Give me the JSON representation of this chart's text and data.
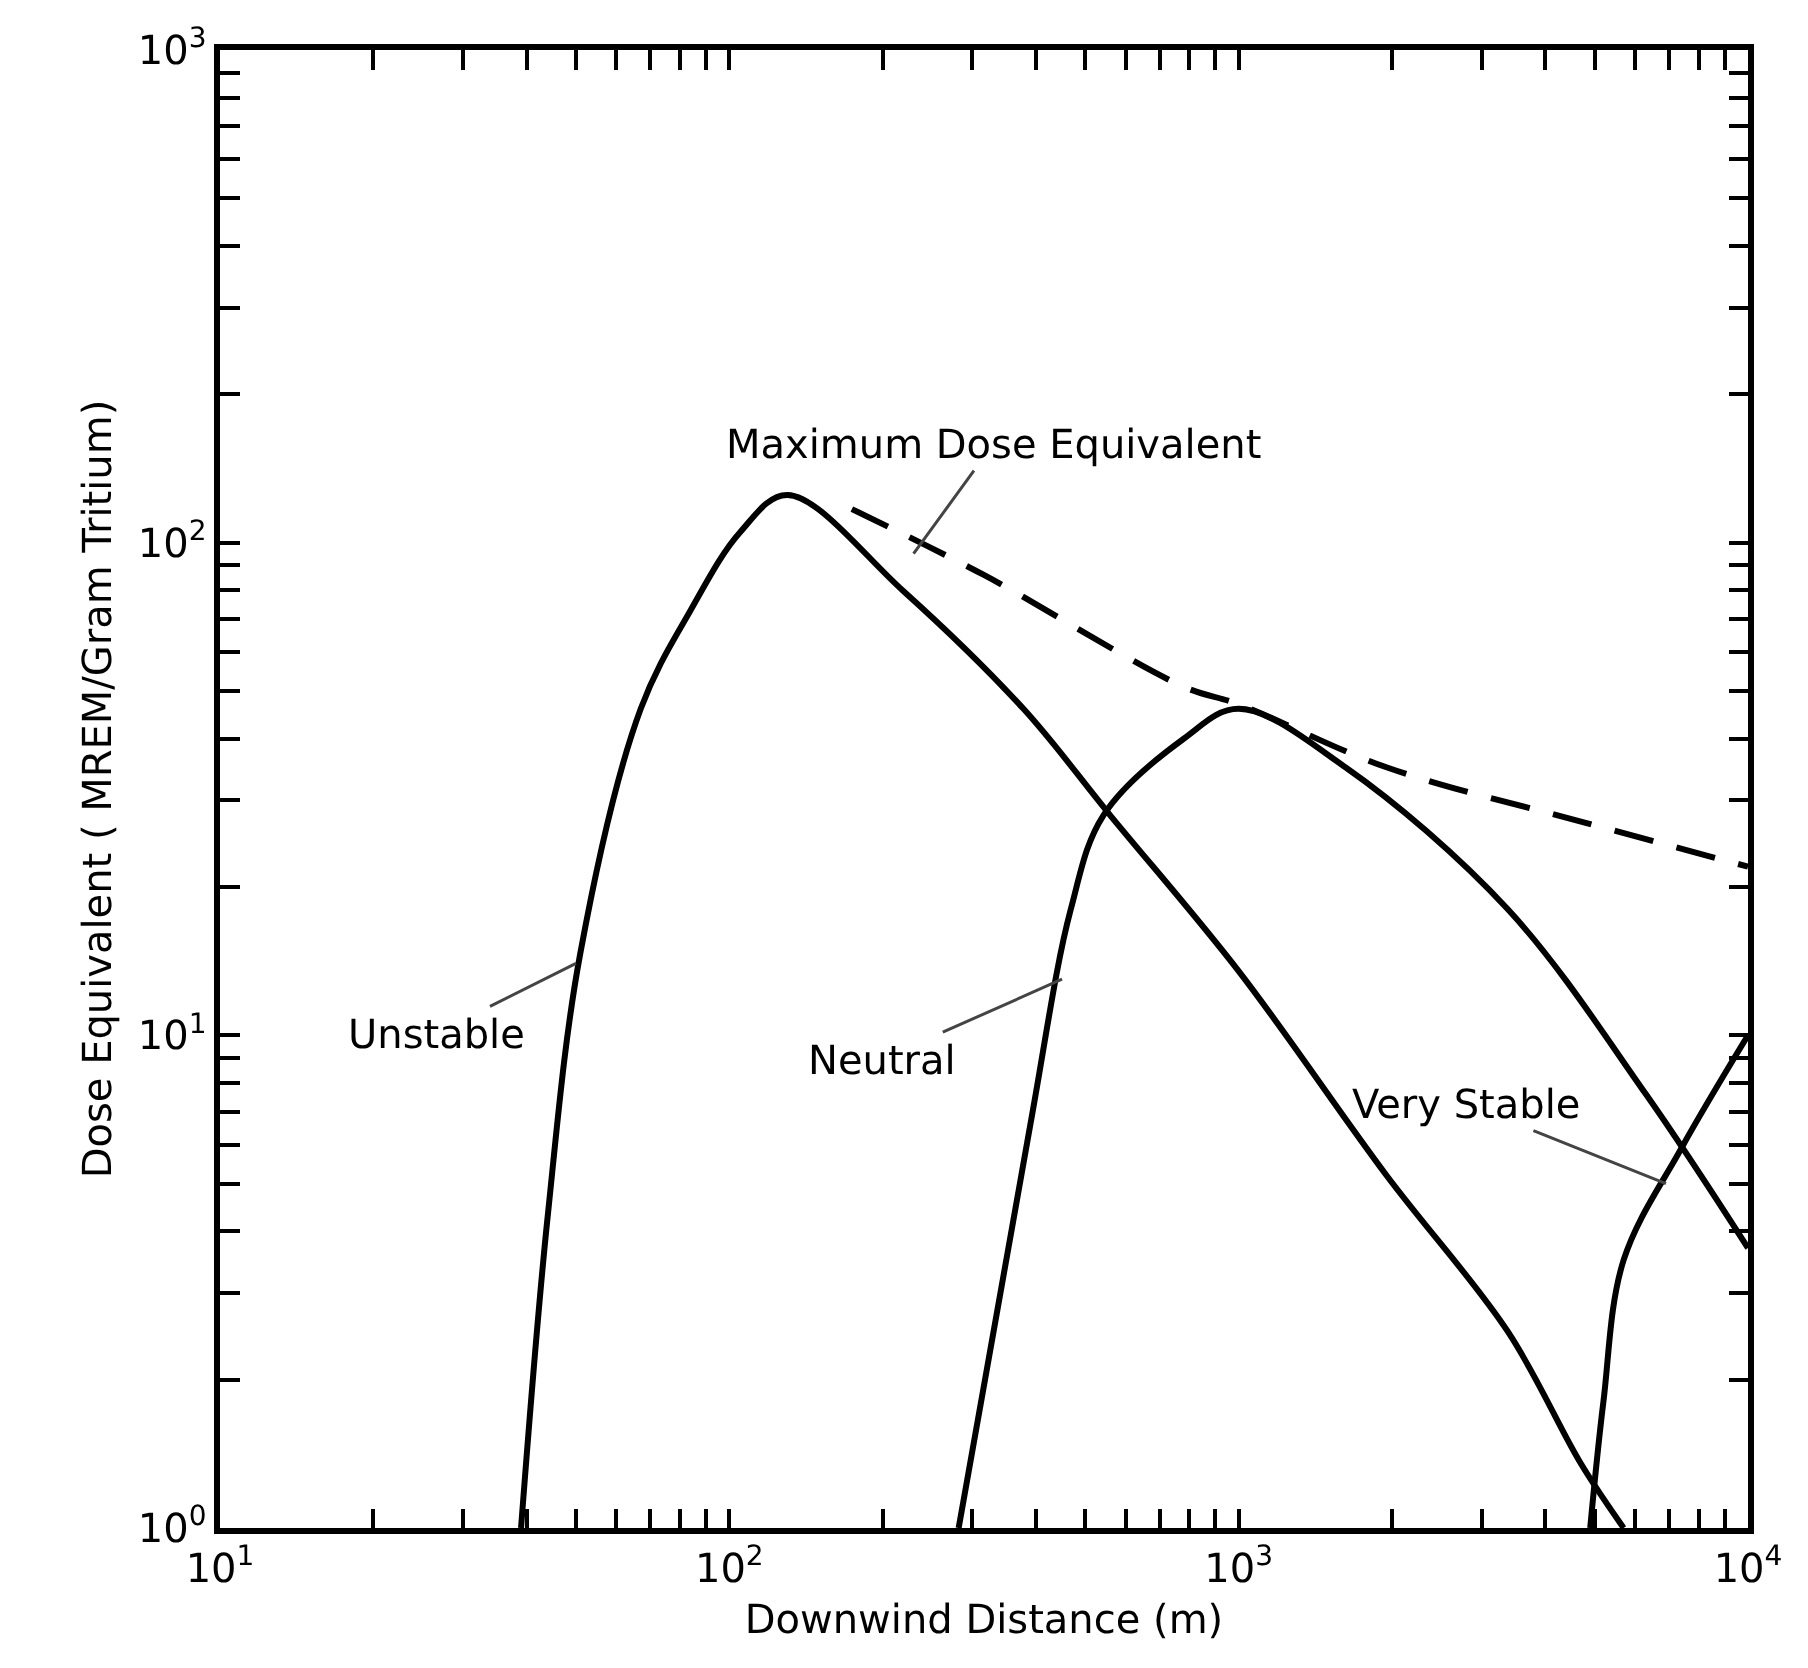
{
  "chart_data": {
    "type": "line",
    "xlabel": "Downwind Distance (m)",
    "ylabel": "Dose Equivalent ( MREM/Gram Tritium)",
    "log": "xy",
    "grid": false,
    "marker": "none",
    "xlim": [
      10,
      10000
    ],
    "ylim": [
      1,
      1000
    ],
    "xticks": [
      {
        "value": 10,
        "label": "10$^{1}$"
      },
      {
        "value": 20,
        "label": null
      },
      {
        "value": 30,
        "label": null
      },
      {
        "value": 40,
        "label": null
      },
      {
        "value": 50,
        "label": null
      },
      {
        "value": 60,
        "label": null
      },
      {
        "value": 70,
        "label": null
      },
      {
        "value": 80,
        "label": null
      },
      {
        "value": 90,
        "label": null
      },
      {
        "value": 100,
        "label": "10$^{2}$"
      },
      {
        "value": 200,
        "label": null
      },
      {
        "value": 300,
        "label": null
      },
      {
        "value": 400,
        "label": null
      },
      {
        "value": 500,
        "label": null
      },
      {
        "value": 600,
        "label": null
      },
      {
        "value": 700,
        "label": null
      },
      {
        "value": 800,
        "label": null
      },
      {
        "value": 900,
        "label": null
      },
      {
        "value": 1000,
        "label": "10$^{3}$"
      },
      {
        "value": 2000,
        "label": null
      },
      {
        "value": 3000,
        "label": null
      },
      {
        "value": 4000,
        "label": null
      },
      {
        "value": 5000,
        "label": null
      },
      {
        "value": 6000,
        "label": null
      },
      {
        "value": 7000,
        "label": null
      },
      {
        "value": 8000,
        "label": null
      },
      {
        "value": 9000,
        "label": null
      },
      {
        "value": 10000,
        "label": "10$^{4}$"
      }
    ],
    "yticks": [
      {
        "value": 1,
        "label": "10$^{0}$"
      },
      {
        "value": 2,
        "label": null
      },
      {
        "value": 3,
        "label": null
      },
      {
        "value": 4,
        "label": null
      },
      {
        "value": 5,
        "label": null
      },
      {
        "value": 6,
        "label": null
      },
      {
        "value": 7,
        "label": null
      },
      {
        "value": 8,
        "label": null
      },
      {
        "value": 9,
        "label": null
      },
      {
        "value": 10,
        "label": "10$^{1}$"
      },
      {
        "value": 20,
        "label": null
      },
      {
        "value": 30,
        "label": null
      },
      {
        "value": 40,
        "label": null
      },
      {
        "value": 50,
        "label": null
      },
      {
        "value": 60,
        "label": null
      },
      {
        "value": 70,
        "label": null
      },
      {
        "value": 80,
        "label": null
      },
      {
        "value": 90,
        "label": null
      },
      {
        "value": 100,
        "label": "10$^{2}$"
      },
      {
        "value": 200,
        "label": null
      },
      {
        "value": 300,
        "label": null
      },
      {
        "value": 400,
        "label": null
      },
      {
        "value": 500,
        "label": null
      },
      {
        "value": 600,
        "label": null
      },
      {
        "value": 700,
        "label": null
      },
      {
        "value": 800,
        "label": null
      },
      {
        "value": 900,
        "label": null
      },
      {
        "value": 1000,
        "label": "10$^{3}$"
      }
    ],
    "series": [
      {
        "color": "#000000",
        "line_style": "solid",
        "x": [
          39,
          44,
          51,
          67,
          84,
          105,
          130,
          219,
          378,
          559,
          1000,
          1950,
          3380,
          4700,
          5700
        ],
        "values": [
          1,
          4.3,
          14.7,
          46,
          73,
          105,
          125,
          80,
          46,
          28,
          13.5,
          5.2,
          2.5,
          1.35,
          1
        ]
      },
      {
        "color": "#000000",
        "line_style": "solid",
        "x": [
          282,
          389,
          468,
          543,
          780,
          1000,
          1620,
          3380,
          6300,
          10000
        ],
        "values": [
          1,
          6.5,
          18,
          28,
          40,
          46,
          35,
          18,
          7.6,
          3.7
        ]
      },
      {
        "color": "#000000",
        "line_style": "solid",
        "x": [
          4900,
          5200,
          5700,
          7400,
          10000
        ],
        "values": [
          1,
          1.8,
          3.5,
          5.9,
          10
        ]
      },
      {
        "color": "#000000",
        "line_style": "dashed",
        "x": [
          174,
          316,
          780,
          1000,
          1950,
          4800,
          10000
        ],
        "values": [
          117,
          86,
          51,
          47,
          35,
          27,
          22
        ]
      }
    ],
    "annotations": [
      {
        "text": "Maximum Dose Equivalent",
        "x": 230,
        "y": 95
      },
      {
        "text": "Unstable",
        "x": 50,
        "y": 14
      },
      {
        "text": "Neutral",
        "x": 450,
        "y": 13
      },
      {
        "text": "Very Stable",
        "x": 6900,
        "y": 5
      }
    ]
  }
}
